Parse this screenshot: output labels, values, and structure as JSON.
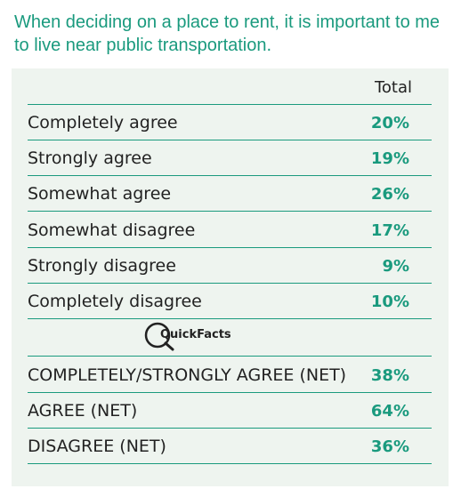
{
  "title": "When deciding on a place to rent, it is important to me to live near public transportation.",
  "chart_data": {
    "type": "table",
    "columns": [
      "Total"
    ],
    "rows": [
      {
        "label": "Completely agree",
        "value": "20%"
      },
      {
        "label": "Strongly agree",
        "value": "19%"
      },
      {
        "label": "Somewhat agree",
        "value": "26%"
      },
      {
        "label": "Somewhat disagree",
        "value": "17%"
      },
      {
        "label": "Strongly disagree",
        "value": "9%"
      },
      {
        "label": "Completely disagree",
        "value": "10%"
      }
    ],
    "logo_text": "QuickFacts",
    "net_rows": [
      {
        "label": "COMPLETELY/STRONGLY AGREE (NET)",
        "value": "38%"
      },
      {
        "label": "AGREE (NET)",
        "value": "64%"
      },
      {
        "label": "DISAGREE (NET)",
        "value": "36%"
      }
    ]
  },
  "colors": {
    "accent": "#1a9a7e",
    "panel": "#eef4ef",
    "text": "#222222"
  }
}
